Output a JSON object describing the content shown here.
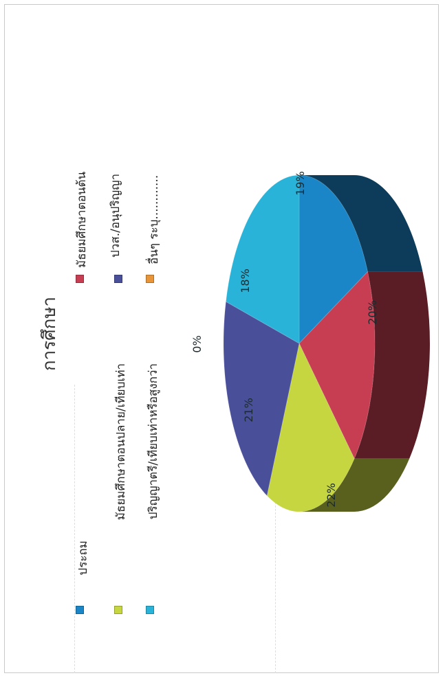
{
  "chart_data": {
    "type": "pie",
    "title": "การศึกษา",
    "categories": [
      "ประถม",
      "มัธยมศึกษาตอนต้น",
      "มัธยมศึกษาตอนปลาย/เทียบเท่า",
      "ปวส./อนุปริญญา",
      "ปริญญาตรี/เทียบเท่าหรือสูงกว่า",
      "อื่นๆ ระบุ............"
    ],
    "values": [
      18,
      19,
      20,
      22,
      21,
      0
    ],
    "labels": [
      "18%",
      "19%",
      "20%",
      "22%",
      "21%",
      "0%"
    ],
    "colors": [
      "#1a86c8",
      "#c73e52",
      "#c6d640",
      "#4a4f9a",
      "#2ab3d8",
      "#e8953a"
    ],
    "legend_placement": "top"
  }
}
